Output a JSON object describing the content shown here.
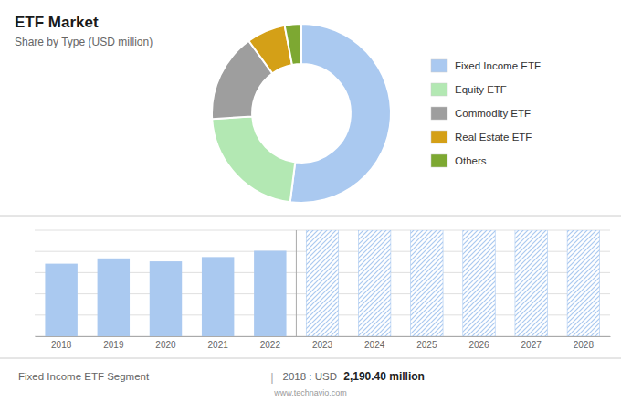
{
  "chart_data": [
    {
      "type": "pie",
      "title": "ETF Market",
      "subtitle": "Share by Type (USD million)",
      "categories": [
        "Fixed Income ETF",
        "Equity ETF",
        "Commodity ETF",
        "Real Estate ETF",
        "Others"
      ],
      "values": [
        52,
        22,
        16,
        7,
        3
      ],
      "colors": [
        "#aac9f0",
        "#b3e8b3",
        "#9e9e9e",
        "#d4a017",
        "#7da832"
      ],
      "legend": "right"
    },
    {
      "type": "bar",
      "categories": [
        "2018",
        "2019",
        "2020",
        "2021",
        "2022",
        "2023",
        "2024",
        "2025",
        "2026",
        "2027",
        "2028"
      ],
      "series": [
        {
          "color": "#aac9f0",
          "values": [
            2190,
            2350,
            2260,
            2390,
            2580,
            null,
            null,
            null,
            null,
            null,
            null
          ]
        },
        {
          "color": "#aac9f0",
          "values": [
            null,
            null,
            null,
            null,
            null,
            3200,
            3200,
            3200,
            3200,
            3200,
            3200
          ]
        }
      ],
      "ylim": [
        0,
        3200
      ],
      "yticks": [
        0,
        640,
        1280,
        1920,
        2560,
        3200
      ],
      "grid": true,
      "tick_labels": "x",
      "annotations": [
        "Fixed Income ETF Segment",
        "|",
        "2018 : USD ",
        "2,190.40 million",
        "www.technavio.com"
      ]
    }
  ]
}
